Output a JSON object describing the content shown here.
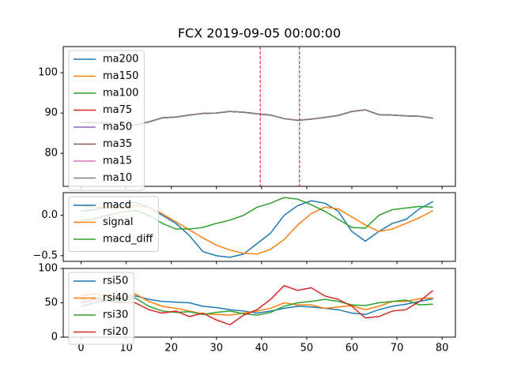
{
  "chart_data": [
    {
      "type": "line",
      "title": "FCX 2019-09-05 00:00:00",
      "x": [
        0,
        3,
        6,
        9,
        12,
        15,
        18,
        21,
        24,
        27,
        30,
        33,
        36,
        39,
        42,
        45,
        48,
        51,
        54,
        57,
        60,
        63,
        66,
        69,
        72,
        75,
        78
      ],
      "xlim": [
        -3.95,
        82.95
      ],
      "ylim": [
        71.8,
        106.5
      ],
      "yticks": [
        80,
        90,
        100
      ],
      "legend": "upper left",
      "vlines": [
        39.7,
        48.4
      ],
      "vline_color": "#ff0000",
      "series": [
        {
          "name": "ma200",
          "color": "#1f77b4",
          "values": [
            87.7,
            87.6,
            87.5,
            87.2,
            87.0,
            87.8,
            88.8,
            89.0,
            89.5,
            89.9,
            90.0,
            90.4,
            90.2,
            89.8,
            89.5,
            88.6,
            88.2,
            88.5,
            88.9,
            89.4,
            90.4,
            90.8,
            89.6,
            89.5,
            89.3,
            89.2,
            88.7
          ]
        },
        {
          "name": "ma150",
          "color": "#ff7f0e",
          "values": [
            87.7,
            87.6,
            87.5,
            87.2,
            87.0,
            87.8,
            88.8,
            89.0,
            89.5,
            89.9,
            90.0,
            90.4,
            90.2,
            89.8,
            89.5,
            88.6,
            88.2,
            88.5,
            88.9,
            89.4,
            90.4,
            90.8,
            89.6,
            89.5,
            89.3,
            89.2,
            88.7
          ]
        },
        {
          "name": "ma100",
          "color": "#2ca02c",
          "values": [
            87.7,
            87.6,
            87.5,
            87.2,
            87.0,
            87.8,
            88.8,
            89.0,
            89.5,
            89.9,
            90.0,
            90.4,
            90.2,
            89.8,
            89.5,
            88.6,
            88.2,
            88.5,
            88.9,
            89.4,
            90.4,
            90.8,
            89.6,
            89.5,
            89.3,
            89.2,
            88.7
          ]
        },
        {
          "name": "ma75",
          "color": "#d62728",
          "values": [
            87.7,
            87.6,
            87.5,
            87.2,
            87.0,
            87.8,
            88.8,
            89.0,
            89.5,
            89.9,
            90.0,
            90.4,
            90.2,
            89.8,
            89.5,
            88.6,
            88.2,
            88.5,
            88.9,
            89.4,
            90.4,
            90.8,
            89.6,
            89.5,
            89.3,
            89.2,
            88.7
          ]
        },
        {
          "name": "ma50",
          "color": "#9467bd",
          "values": [
            87.7,
            87.6,
            87.5,
            87.2,
            87.0,
            87.8,
            88.8,
            89.0,
            89.5,
            89.9,
            90.0,
            90.4,
            90.2,
            89.8,
            89.5,
            88.6,
            88.2,
            88.5,
            88.9,
            89.4,
            90.4,
            90.8,
            89.6,
            89.5,
            89.3,
            89.2,
            88.7
          ]
        },
        {
          "name": "ma35",
          "color": "#8c564b",
          "values": [
            87.7,
            87.6,
            87.5,
            87.2,
            87.0,
            87.8,
            88.8,
            89.0,
            89.5,
            89.9,
            90.0,
            90.4,
            90.2,
            89.8,
            89.5,
            88.6,
            88.2,
            88.5,
            88.9,
            89.4,
            90.4,
            90.8,
            89.6,
            89.5,
            89.3,
            89.2,
            88.7
          ]
        },
        {
          "name": "ma15",
          "color": "#e377c2",
          "values": [
            87.7,
            87.6,
            87.5,
            87.2,
            87.0,
            87.8,
            88.8,
            89.0,
            89.5,
            89.9,
            90.0,
            90.4,
            90.2,
            89.8,
            89.5,
            88.6,
            88.2,
            88.5,
            88.9,
            89.4,
            90.4,
            90.8,
            89.6,
            89.5,
            89.3,
            89.2,
            88.7
          ]
        },
        {
          "name": "ma10",
          "color": "#7f7f7f",
          "values": [
            87.7,
            87.6,
            87.5,
            87.2,
            87.0,
            87.8,
            88.8,
            89.0,
            89.5,
            89.9,
            90.0,
            90.4,
            90.2,
            89.8,
            89.5,
            88.6,
            88.2,
            88.5,
            88.9,
            89.4,
            90.4,
            90.8,
            89.6,
            89.5,
            89.3,
            89.2,
            88.7
          ]
        }
      ]
    },
    {
      "type": "line",
      "x": [
        0,
        3,
        6,
        9,
        12,
        15,
        18,
        21,
        24,
        27,
        30,
        33,
        36,
        39,
        42,
        45,
        48,
        51,
        54,
        57,
        60,
        63,
        66,
        69,
        72,
        75,
        78
      ],
      "xlim": [
        -3.95,
        82.95
      ],
      "ylim": [
        -0.57,
        0.28
      ],
      "yticks": [
        {
          "value": -0.5,
          "label": "−0.5"
        },
        {
          "value": 0,
          "label": "0.0"
        }
      ],
      "legend": "upper left",
      "series": [
        {
          "name": "macd",
          "color": "#1f77b4",
          "values": [
            0.05,
            0.07,
            0.1,
            0.14,
            0.16,
            0.1,
            0.0,
            -0.1,
            -0.25,
            -0.45,
            -0.5,
            -0.52,
            -0.48,
            -0.35,
            -0.22,
            0.0,
            0.12,
            0.18,
            0.15,
            0.05,
            -0.2,
            -0.32,
            -0.2,
            -0.1,
            -0.05,
            0.08,
            0.17
          ]
        },
        {
          "name": "signal",
          "color": "#ff7f0e",
          "values": [
            0.12,
            0.1,
            0.09,
            0.1,
            0.12,
            0.1,
            0.02,
            -0.08,
            -0.18,
            -0.28,
            -0.37,
            -0.43,
            -0.47,
            -0.48,
            -0.42,
            -0.3,
            -0.12,
            0.02,
            0.1,
            0.08,
            -0.02,
            -0.12,
            -0.2,
            -0.17,
            -0.1,
            -0.03,
            0.06
          ]
        },
        {
          "name": "macd_diff",
          "color": "#2ca02c",
          "values": [
            -0.07,
            -0.04,
            0.0,
            0.04,
            0.06,
            0.0,
            -0.1,
            -0.17,
            -0.17,
            -0.15,
            -0.1,
            -0.06,
            0.0,
            0.1,
            0.15,
            0.22,
            0.2,
            0.13,
            0.05,
            -0.05,
            -0.15,
            -0.16,
            0.0,
            0.07,
            0.09,
            0.11,
            0.1
          ]
        }
      ]
    },
    {
      "type": "line",
      "x": [
        0,
        3,
        6,
        9,
        12,
        15,
        18,
        21,
        24,
        27,
        30,
        33,
        36,
        39,
        42,
        45,
        48,
        51,
        54,
        57,
        60,
        63,
        66,
        69,
        72,
        75,
        78
      ],
      "xlim": [
        -3.95,
        82.95
      ],
      "xticks": [
        0,
        10,
        20,
        30,
        40,
        50,
        60,
        70,
        80
      ],
      "ylim": [
        0,
        100
      ],
      "yticks": [
        0,
        50,
        100
      ],
      "legend": "upper left",
      "series": [
        {
          "name": "rsi50",
          "color": "#1f77b4",
          "values": [
            45,
            50,
            53,
            55,
            60,
            55,
            52,
            51,
            50,
            45,
            43,
            40,
            38,
            35,
            38,
            42,
            45,
            44,
            42,
            40,
            35,
            33,
            40,
            45,
            48,
            52,
            56
          ]
        },
        {
          "name": "rsi40",
          "color": "#ff7f0e",
          "values": [
            60,
            63,
            60,
            57,
            63,
            52,
            45,
            42,
            38,
            34,
            33,
            32,
            35,
            38,
            42,
            50,
            47,
            47,
            42,
            44,
            46,
            40,
            45,
            52,
            52,
            56,
            57
          ]
        },
        {
          "name": "rsi30",
          "color": "#2ca02c",
          "values": [
            55,
            58,
            55,
            52,
            57,
            45,
            38,
            36,
            37,
            33,
            36,
            38,
            34,
            32,
            36,
            45,
            50,
            52,
            55,
            52,
            47,
            46,
            50,
            52,
            54,
            47,
            48
          ]
        },
        {
          "name": "rsi20",
          "color": "#d62728",
          "values": [
            50,
            55,
            52,
            50,
            50,
            40,
            35,
            38,
            30,
            35,
            25,
            18,
            32,
            40,
            55,
            75,
            68,
            72,
            60,
            55,
            45,
            28,
            30,
            38,
            40,
            52,
            68
          ]
        }
      ]
    }
  ]
}
